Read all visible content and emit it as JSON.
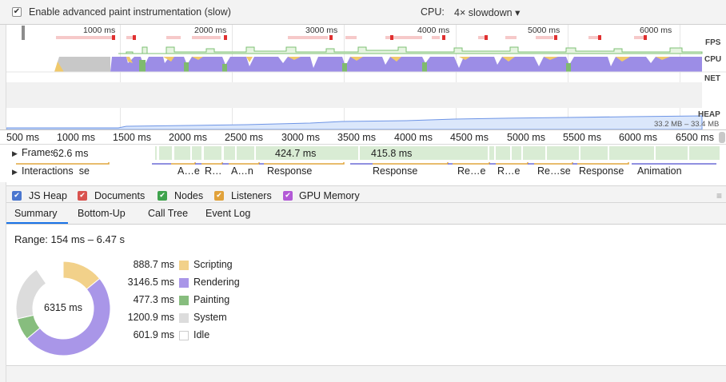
{
  "toolbar": {
    "paint_checkbox_mark": "✔",
    "paint_label": "Enable advanced paint instrumentation (slow)",
    "cpu_label": "CPU:",
    "cpu_value": "4× slowdown ▾"
  },
  "overview": {
    "ticks": [
      "1000 ms",
      "2000 ms",
      "3000 ms",
      "4000 ms",
      "5000 ms",
      "6000 ms"
    ],
    "tracks": {
      "fps": "FPS",
      "cpu": "CPU",
      "net": "NET",
      "heap": "HEAP"
    },
    "heap_range": "33.2 MB – 33.4 MB"
  },
  "ruler": {
    "ticks": [
      "500 ms",
      "1000 ms",
      "1500 ms",
      "2000 ms",
      "2500 ms",
      "3000 ms",
      "3500 ms",
      "4000 ms",
      "4500 ms",
      "5000 ms",
      "5500 ms",
      "6000 ms",
      "6500 ms"
    ]
  },
  "frames": {
    "toggle": "▶",
    "label": "Frames",
    "values": [
      "62.6 ms",
      "424.7 ms",
      "415.8 ms"
    ]
  },
  "interactions": {
    "toggle": "▶",
    "label": "Interactions",
    "items": [
      "Response",
      "A…e",
      "R…",
      "A…n",
      "Response",
      "Response",
      "Re…e",
      "R…e",
      "Re…se",
      "Response",
      "Animation"
    ]
  },
  "counters": {
    "items": [
      {
        "label": "JS Heap",
        "color": "#3b6fd4"
      },
      {
        "label": "Documents",
        "color": "#d9534f"
      },
      {
        "label": "Nodes",
        "color": "#3fa34d"
      },
      {
        "label": "Listeners",
        "color": "#e1a23b"
      },
      {
        "label": "GPU Memory",
        "color": "#b259d6"
      }
    ],
    "check": "✔",
    "menu_icon": "≡"
  },
  "tabs": [
    "Summary",
    "Bottom-Up",
    "Call Tree",
    "Event Log"
  ],
  "summary": {
    "range": "Range: 154 ms – 6.47 s",
    "total": "6315 ms",
    "legend": [
      {
        "value": "888.7 ms",
        "name": "Scripting",
        "color": "#f2d18a"
      },
      {
        "value": "3146.5 ms",
        "name": "Rendering",
        "color": "#a996e8"
      },
      {
        "value": "477.3 ms",
        "name": "Painting",
        "color": "#87bd7e"
      },
      {
        "value": "1200.9 ms",
        "name": "System",
        "color": "#dcdcdc"
      },
      {
        "value": "601.9 ms",
        "name": "Idle",
        "color": "#ffffff"
      }
    ]
  }
}
